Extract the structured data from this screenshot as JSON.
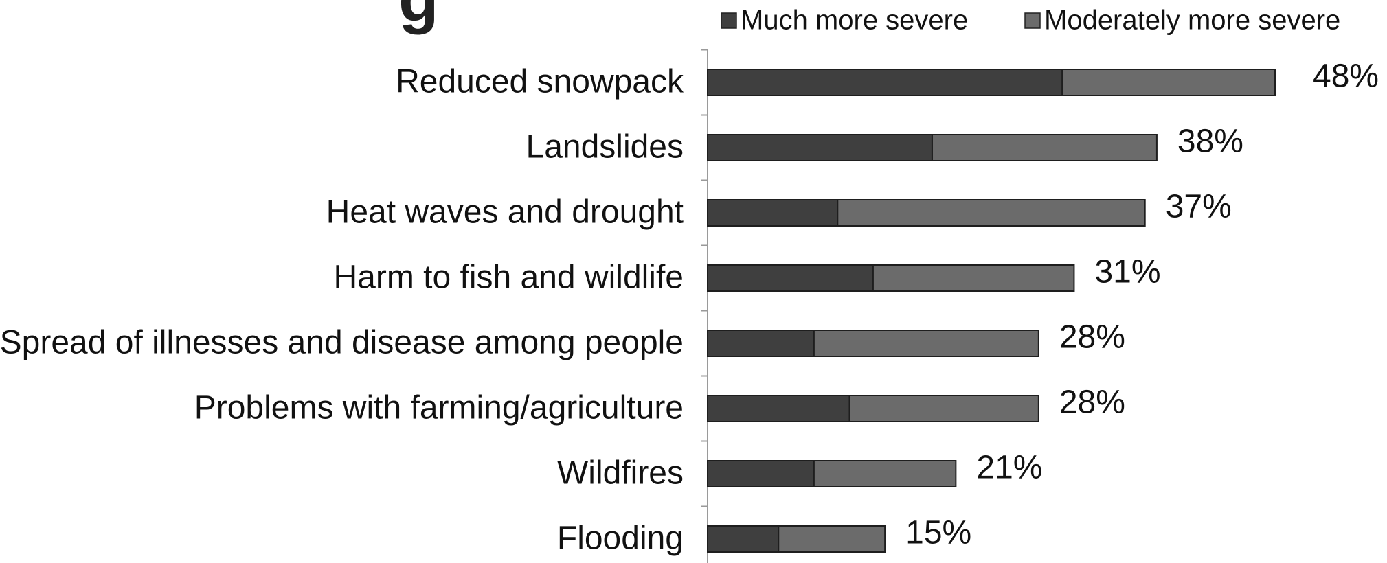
{
  "chart_data": {
    "type": "bar",
    "orientation": "horizontal",
    "stacked": true,
    "title_fragment": "g",
    "categories": [
      "Reduced snowpack",
      "Landslides",
      "Heat waves and drought",
      "Harm to fish and wildlife",
      "Spread of illnesses and disease among people",
      "Problems with farming/agriculture",
      "Wildfires",
      "Flooding"
    ],
    "series": [
      {
        "name": "Much more severe",
        "color": "#3f3f3f",
        "values": [
          30,
          19,
          11,
          14,
          9,
          12,
          9,
          6
        ]
      },
      {
        "name": "Moderately more severe",
        "color": "#6b6b6b",
        "values": [
          18,
          19,
          26,
          17,
          19,
          16,
          12,
          9
        ]
      }
    ],
    "totals_labels": [
      "48%",
      "38%",
      "37%",
      "31%",
      "28%",
      "28%",
      "21%",
      "15%"
    ],
    "xlim": [
      0,
      55
    ],
    "legend_position": "top",
    "grid": false,
    "xlabel": "",
    "ylabel": ""
  }
}
